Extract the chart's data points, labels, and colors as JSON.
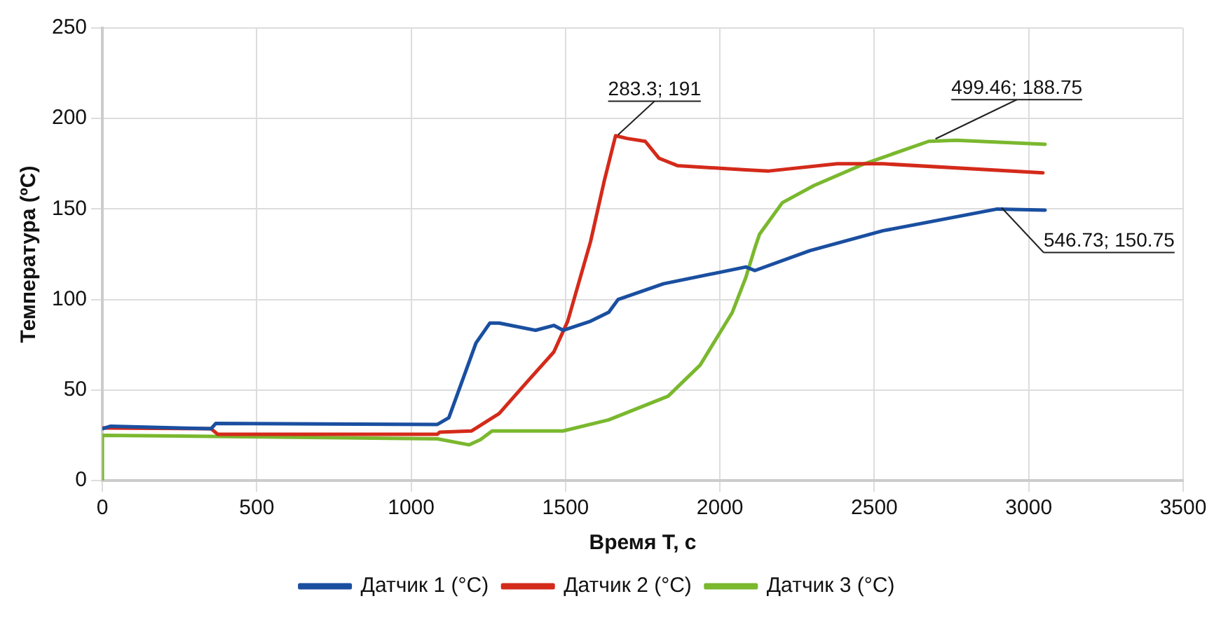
{
  "chart_data": {
    "type": "line",
    "xlabel": "Время Т, с",
    "ylabel": "Температура (ºC)",
    "xlim": [
      0,
      3500
    ],
    "xticks": [
      0,
      500,
      1000,
      1500,
      2000,
      2500,
      3000,
      3500
    ],
    "ylim": [
      0,
      250
    ],
    "yticks": [
      0,
      50,
      100,
      150,
      200,
      250
    ],
    "grid": true,
    "legend": "bottom",
    "marker": "none",
    "line_style": "solid",
    "series": [
      {
        "name": "Датчик 1 (°C)",
        "color": "#1a4fa0",
        "x": [
          0,
          27,
          352,
          367,
          1085,
          1122,
          1210,
          1255,
          1285,
          1403,
          1462,
          1492,
          1581,
          1640,
          1670,
          1817,
          2084,
          2113,
          2291,
          2528,
          2898,
          3053
        ],
        "values": [
          28.6,
          30,
          28.6,
          31.5,
          31,
          34.7,
          76,
          87,
          87,
          83,
          85.7,
          83,
          88,
          93,
          100,
          108.7,
          118,
          116,
          127,
          138,
          150,
          149.4
        ]
      },
      {
        "name": "Датчик 2 (°C)",
        "color": "#d42a1a",
        "x": [
          0,
          352,
          374,
          1085,
          1092,
          1196,
          1285,
          1373,
          1462,
          1507,
          1581,
          1626,
          1662,
          1699,
          1758,
          1803,
          1862,
          2084,
          2158,
          2380,
          2528,
          3046
        ],
        "values": [
          29,
          28.6,
          25.5,
          25.5,
          26.7,
          27.4,
          37,
          54,
          71,
          88,
          132,
          166,
          190.5,
          189,
          187.4,
          178,
          174,
          171.6,
          171,
          175,
          175,
          170
        ]
      },
      {
        "name": "Датчик 3 (°C)",
        "color": "#7ab82e",
        "x": [
          0,
          0,
          1085,
          1188,
          1225,
          1262,
          1492,
          1640,
          1832,
          1936,
          2040,
          2084,
          2114,
          2128,
          2202,
          2305,
          2468,
          2676,
          2765,
          3053
        ],
        "values": [
          0.7,
          25,
          23,
          19.7,
          22.6,
          27.4,
          27.4,
          33.5,
          46.6,
          63.8,
          92.9,
          112.3,
          129,
          136,
          153.5,
          163,
          175,
          187.4,
          188,
          185.8
        ]
      }
    ],
    "annotations": [
      {
        "text": "283.3; 191",
        "x": 1670,
        "y": 191
      },
      {
        "text": "499.46; 188.75",
        "x": 2698,
        "y": 188.75
      },
      {
        "text": "546.73; 150.75",
        "x": 2912,
        "y": 150.75
      }
    ]
  }
}
